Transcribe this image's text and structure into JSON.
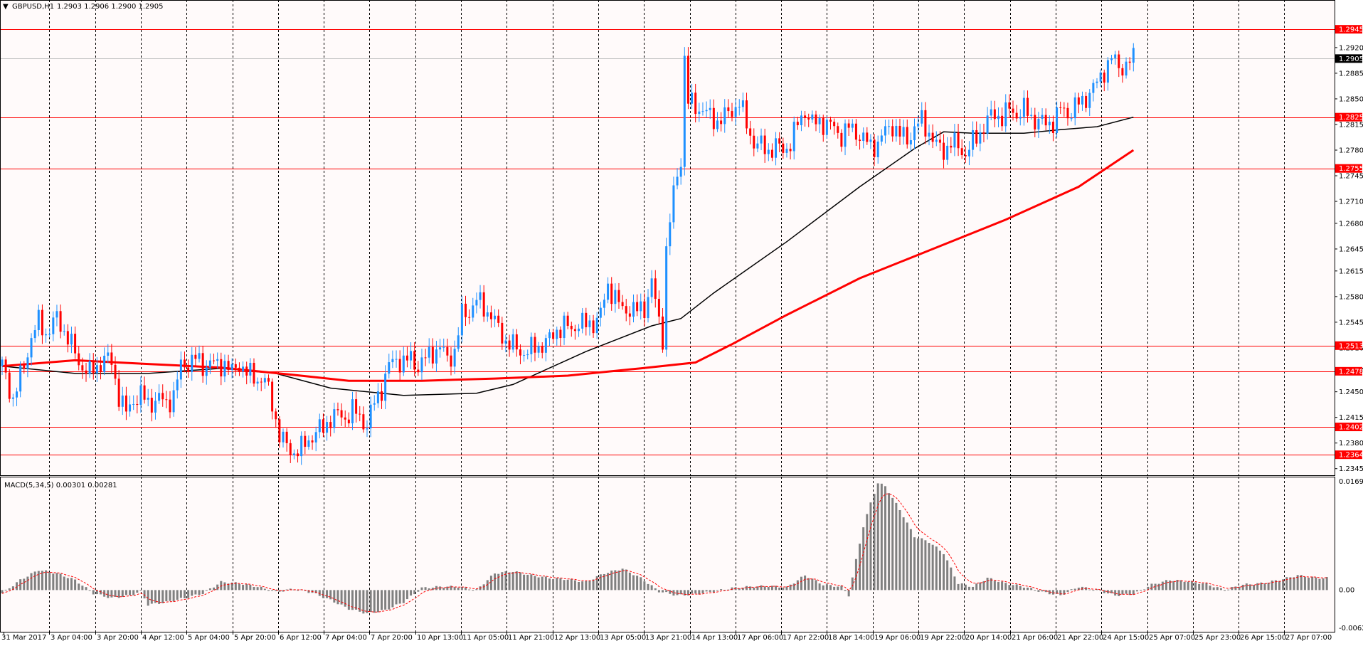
{
  "header": {
    "symbol_label": "GBPUSD,H1",
    "ohlc": "1.2903 1.2906 1.2900 1.2905",
    "menu_glyph": "▼"
  },
  "macd_header": {
    "label": "MACD(5,34,5) 0.00301 0.00281"
  },
  "colors": {
    "background": "#fffafa",
    "up_candle": "#1e90ff",
    "down_candle": "#ff0000",
    "ma_fast": "#000000",
    "ma_slow": "#ff0000",
    "hline": "#ff0000",
    "grid": "#000000",
    "macd_hist": "#808080",
    "macd_signal": "#ff0000"
  },
  "chart_data": [
    {
      "type": "candlestick",
      "title": "GBPUSD,H1",
      "ylim": [
        1.2336,
        1.2985
      ],
      "y_ticks": [
        "1.2945",
        "1.2920",
        "1.2885",
        "1.2850",
        "1.2815",
        "1.2780",
        "1.2745",
        "1.2710",
        "1.2680",
        "1.2645",
        "1.2615",
        "1.2580",
        "1.2545",
        "1.2510",
        "1.2480",
        "1.2450",
        "1.2415",
        "1.2380",
        "1.2345"
      ],
      "current_price": "1.2905",
      "horizontal_levels": [
        "1.2945",
        "1.2825",
        "1.2755",
        "1.2513",
        "1.2478",
        "1.2402",
        "1.2364"
      ],
      "x_ticks": [
        "31 Mar 2017",
        "3 Apr 04:00",
        "3 Apr 20:00",
        "4 Apr 12:00",
        "5 Apr 04:00",
        "5 Apr 20:00",
        "6 Apr 12:00",
        "7 Apr 04:00",
        "7 Apr 20:00",
        "10 Apr 13:00",
        "11 Apr 05:00",
        "11 Apr 21:00",
        "12 Apr 13:00",
        "13 Apr 05:00",
        "13 Apr 21:00",
        "14 Apr 13:00",
        "17 Apr 06:00",
        "17 Apr 22:00",
        "18 Apr 14:00",
        "19 Apr 06:00",
        "19 Apr 22:00",
        "20 Apr 14:00",
        "21 Apr 06:00",
        "21 Apr 22:00",
        "24 Apr 15:00",
        "25 Apr 07:00",
        "25 Apr 23:00",
        "26 Apr 15:00",
        "27 Apr 07:00"
      ],
      "close_path": [
        [
          0,
          1.2485
        ],
        [
          3,
          1.244
        ],
        [
          6,
          1.2485
        ],
        [
          8,
          1.2525
        ],
        [
          10,
          1.2545
        ],
        [
          12,
          1.253
        ],
        [
          15,
          1.255
        ],
        [
          18,
          1.2525
        ],
        [
          21,
          1.249
        ],
        [
          24,
          1.2475
        ],
        [
          26,
          1.2485
        ],
        [
          28,
          1.2495
        ],
        [
          30,
          1.249
        ],
        [
          32,
          1.2445
        ],
        [
          34,
          1.242
        ],
        [
          36,
          1.244
        ],
        [
          38,
          1.2445
        ],
        [
          40,
          1.2435
        ],
        [
          43,
          1.244
        ],
        [
          45,
          1.2435
        ],
        [
          47,
          1.2445
        ],
        [
          49,
          1.2485
        ],
        [
          51,
          1.249
        ],
        [
          53,
          1.2495
        ],
        [
          55,
          1.2485
        ],
        [
          57,
          1.249
        ],
        [
          59,
          1.2485
        ],
        [
          61,
          1.249
        ],
        [
          63,
          1.2475
        ],
        [
          65,
          1.249
        ],
        [
          67,
          1.2475
        ],
        [
          69,
          1.247
        ],
        [
          72,
          1.2465
        ],
        [
          74,
          1.2435
        ],
        [
          76,
          1.239
        ],
        [
          78,
          1.2375
        ],
        [
          80,
          1.2368
        ],
        [
          82,
          1.2372
        ],
        [
          84,
          1.2385
        ],
        [
          86,
          1.2395
        ],
        [
          88,
          1.24
        ],
        [
          90,
          1.2415
        ],
        [
          92,
          1.2418
        ],
        [
          94,
          1.2415
        ],
        [
          96,
          1.2425
        ],
        [
          98,
          1.2415
        ],
        [
          100,
          1.2405
        ],
        [
          102,
          1.2435
        ],
        [
          104,
          1.2455
        ],
        [
          106,
          1.2485
        ],
        [
          108,
          1.2495
        ],
        [
          110,
          1.249
        ],
        [
          112,
          1.2495
        ],
        [
          114,
          1.2485
        ],
        [
          116,
          1.2495
        ],
        [
          118,
          1.2505
        ],
        [
          120,
          1.251
        ],
        [
          122,
          1.2495
        ],
        [
          124,
          1.2505
        ],
        [
          126,
          1.2555
        ],
        [
          128,
          1.256
        ],
        [
          130,
          1.2575
        ],
        [
          132,
          1.2565
        ],
        [
          134,
          1.2555
        ],
        [
          136,
          1.2535
        ],
        [
          138,
          1.252
        ],
        [
          140,
          1.2512
        ],
        [
          142,
          1.2505
        ],
        [
          144,
          1.2505
        ],
        [
          146,
          1.251
        ],
        [
          148,
          1.2515
        ],
        [
          150,
          1.252
        ],
        [
          152,
          1.2535
        ],
        [
          154,
          1.254
        ],
        [
          156,
          1.2535
        ],
        [
          158,
          1.2545
        ],
        [
          160,
          1.254
        ],
        [
          162,
          1.2545
        ],
        [
          164,
          1.2555
        ],
        [
          166,
          1.2595
        ],
        [
          168,
          1.258
        ],
        [
          170,
          1.256
        ],
        [
          172,
          1.2565
        ],
        [
          174,
          1.256
        ],
        [
          176,
          1.2565
        ],
        [
          178,
          1.26
        ],
        [
          180,
          1.2545
        ],
        [
          181,
          1.2525
        ],
        [
          182,
          1.2645
        ],
        [
          184,
          1.272
        ],
        [
          186,
          1.277
        ],
        [
          187,
          1.2905
        ],
        [
          188,
          1.2845
        ],
        [
          190,
          1.284
        ],
        [
          192,
          1.2835
        ],
        [
          194,
          1.2825
        ],
        [
          196,
          1.282
        ],
        [
          198,
          1.2825
        ],
        [
          200,
          1.2835
        ],
        [
          202,
          1.2845
        ],
        [
          204,
          1.2815
        ],
        [
          206,
          1.279
        ],
        [
          208,
          1.2785
        ],
        [
          210,
          1.278
        ],
        [
          212,
          1.2785
        ],
        [
          214,
          1.278
        ],
        [
          216,
          1.279
        ],
        [
          218,
          1.2815
        ],
        [
          220,
          1.2835
        ],
        [
          222,
          1.2815
        ],
        [
          224,
          1.282
        ],
        [
          226,
          1.2815
        ],
        [
          228,
          1.281
        ],
        [
          230,
          1.28
        ],
        [
          232,
          1.281
        ],
        [
          234,
          1.2805
        ],
        [
          236,
          1.2795
        ],
        [
          238,
          1.2785
        ],
        [
          240,
          1.279
        ],
        [
          242,
          1.2805
        ],
        [
          244,
          1.2815
        ],
        [
          246,
          1.28
        ],
        [
          248,
          1.2795
        ],
        [
          250,
          1.281
        ],
        [
          252,
          1.282
        ],
        [
          254,
          1.2805
        ],
        [
          256,
          1.2785
        ],
        [
          258,
          1.278
        ],
        [
          260,
          1.279
        ],
        [
          262,
          1.2785
        ],
        [
          264,
          1.2775
        ],
        [
          266,
          1.279
        ],
        [
          268,
          1.2805
        ],
        [
          270,
          1.282
        ],
        [
          272,
          1.283
        ],
        [
          274,
          1.2825
        ],
        [
          276,
          1.2835
        ],
        [
          278,
          1.283
        ],
        [
          280,
          1.2835
        ],
        [
          282,
          1.2825
        ],
        [
          284,
          1.282
        ],
        [
          286,
          1.2815
        ],
        [
          288,
          1.282
        ],
        [
          290,
          1.2835
        ],
        [
          292,
          1.283
        ],
        [
          294,
          1.284
        ],
        [
          296,
          1.2845
        ],
        [
          298,
          1.286
        ],
        [
          300,
          1.287
        ],
        [
          302,
          1.289
        ],
        [
          304,
          1.2905
        ],
        [
          306,
          1.2895
        ],
        [
          308,
          1.2895
        ],
        [
          310,
          1.2905
        ]
      ],
      "series": [
        {
          "name": "",
          "color": "#000000",
          "points": [
            [
              0,
              1.2485
            ],
            [
              20,
              1.2475
            ],
            [
              40,
              1.2475
            ],
            [
              60,
              1.2482
            ],
            [
              75,
              1.2475
            ],
            [
              90,
              1.2455
            ],
            [
              110,
              1.2445
            ],
            [
              130,
              1.2448
            ],
            [
              140,
              1.246
            ],
            [
              160,
              1.2505
            ],
            [
              178,
              1.254
            ],
            [
              186,
              1.255
            ],
            [
              195,
              1.2585
            ],
            [
              215,
              1.2655
            ],
            [
              235,
              1.273
            ],
            [
              250,
              1.2782
            ],
            [
              258,
              1.2805
            ],
            [
              266,
              1.2803
            ],
            [
              280,
              1.2803
            ],
            [
              290,
              1.2808
            ],
            [
              300,
              1.2812
            ],
            [
              310,
              1.2825
            ]
          ]
        },
        {
          "name": "",
          "color": "#ff0000",
          "points": [
            [
              0,
              1.2485
            ],
            [
              20,
              1.2493
            ],
            [
              40,
              1.2488
            ],
            [
              60,
              1.2483
            ],
            [
              80,
              1.2473
            ],
            [
              95,
              1.2465
            ],
            [
              115,
              1.2465
            ],
            [
              135,
              1.2468
            ],
            [
              155,
              1.2472
            ],
            [
              175,
              1.2482
            ],
            [
              190,
              1.249
            ],
            [
              200,
              1.2515
            ],
            [
              215,
              1.2555
            ],
            [
              235,
              1.2605
            ],
            [
              255,
              1.2645
            ],
            [
              275,
              1.2685
            ],
            [
              295,
              1.273
            ],
            [
              310,
              1.278
            ]
          ]
        }
      ]
    },
    {
      "type": "bar",
      "title": "MACD(5,34,5) 0.00301 0.00281",
      "ylim": [
        -0.00623,
        0.01694
      ],
      "y_ticks": [
        "0.01694",
        "0.00",
        "-0.00623"
      ],
      "main": 0.00301,
      "signal": 0.00281,
      "histogram_path": [
        [
          0,
          -0.0005
        ],
        [
          5,
          0.0015
        ],
        [
          10,
          0.003
        ],
        [
          15,
          0.0025
        ],
        [
          20,
          0.0015
        ],
        [
          25,
          -0.0005
        ],
        [
          30,
          -0.0012
        ],
        [
          35,
          -0.0008
        ],
        [
          38,
          -0.0002
        ],
        [
          40,
          -0.0022
        ],
        [
          45,
          -0.0018
        ],
        [
          50,
          -0.0012
        ],
        [
          55,
          -0.0005
        ],
        [
          60,
          0.0012
        ],
        [
          65,
          0.001
        ],
        [
          70,
          0.0005
        ],
        [
          75,
          -0.0003
        ],
        [
          80,
          0.0002
        ],
        [
          85,
          -0.0004
        ],
        [
          90,
          -0.0015
        ],
        [
          95,
          -0.0028
        ],
        [
          100,
          -0.0035
        ],
        [
          105,
          -0.003
        ],
        [
          110,
          -0.0018
        ],
        [
          115,
          0.0003
        ],
        [
          120,
          0.0005
        ],
        [
          125,
          0.0005
        ],
        [
          130,
          0.0
        ],
        [
          135,
          0.0025
        ],
        [
          140,
          0.0028
        ],
        [
          145,
          0.0022
        ],
        [
          150,
          0.0018
        ],
        [
          155,
          0.0016
        ],
        [
          160,
          0.0012
        ],
        [
          165,
          0.0025
        ],
        [
          170,
          0.0032
        ],
        [
          175,
          0.0018
        ],
        [
          180,
          -0.0002
        ],
        [
          185,
          -0.0008
        ],
        [
          190,
          -0.0006
        ],
        [
          195,
          -0.0002
        ],
        [
          200,
          0.0003
        ],
        [
          205,
          0.0005
        ],
        [
          210,
          0.0006
        ],
        [
          215,
          0.0004
        ],
        [
          220,
          0.0022
        ],
        [
          225,
          0.0008
        ],
        [
          230,
          0.0005
        ],
        [
          232,
          -0.0008
        ],
        [
          234,
          0.0045
        ],
        [
          236,
          0.0095
        ],
        [
          238,
          0.013
        ],
        [
          240,
          0.016
        ],
        [
          242,
          0.0155
        ],
        [
          246,
          0.012
        ],
        [
          250,
          0.008
        ],
        [
          254,
          0.0072
        ],
        [
          258,
          0.0055
        ],
        [
          262,
          0.001
        ],
        [
          266,
          0.0005
        ],
        [
          270,
          0.0018
        ],
        [
          275,
          0.001
        ],
        [
          280,
          0.0005
        ],
        [
          285,
          -0.0003
        ],
        [
          290,
          -0.0008
        ],
        [
          295,
          0.0005
        ],
        [
          300,
          0.0
        ],
        [
          305,
          -0.0008
        ],
        [
          310,
          -0.0006
        ],
        [
          315,
          0.0008
        ],
        [
          320,
          0.0015
        ],
        [
          325,
          0.0013
        ],
        [
          330,
          0.0009
        ],
        [
          335,
          0.0
        ],
        [
          340,
          0.0008
        ],
        [
          345,
          0.001
        ],
        [
          350,
          0.0015
        ],
        [
          355,
          0.0022
        ],
        [
          360,
          0.0018
        ],
        [
          364,
          0.0018
        ]
      ]
    }
  ]
}
